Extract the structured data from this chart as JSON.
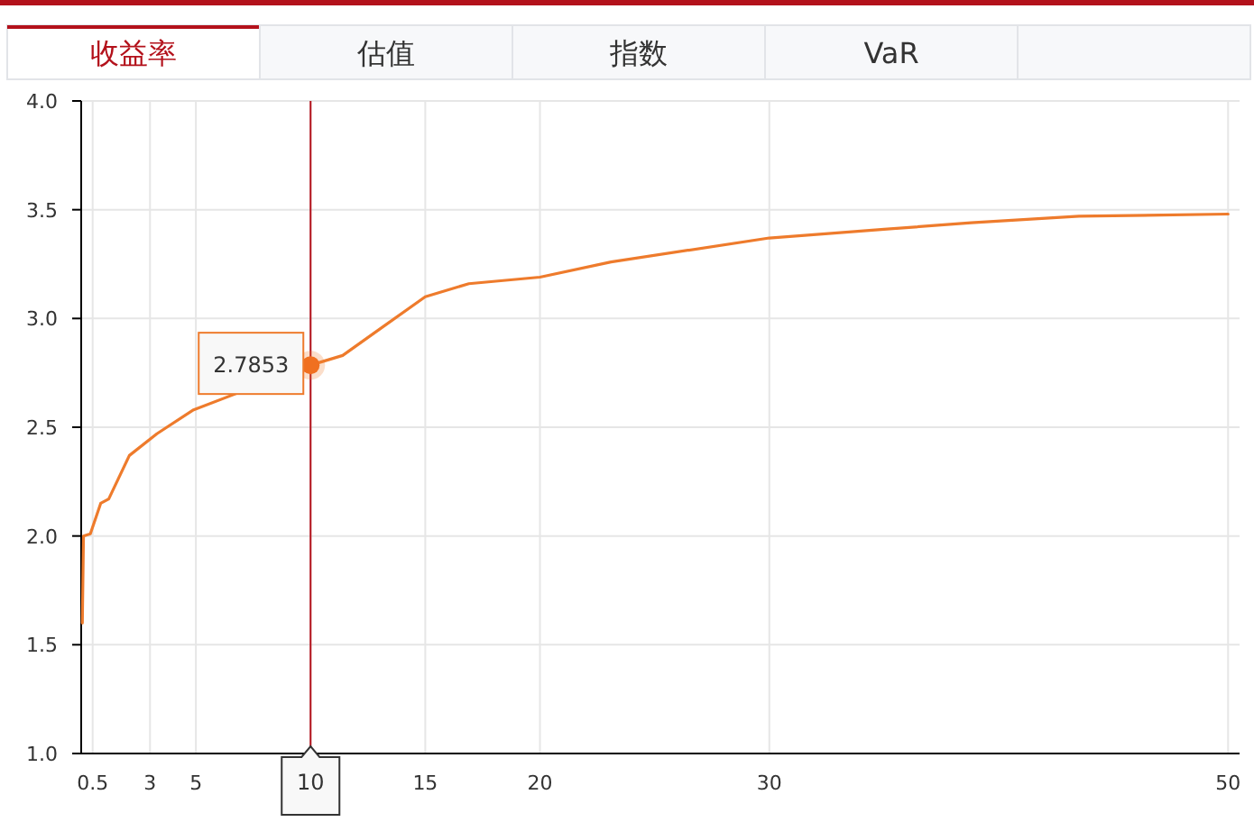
{
  "chart_data": {
    "type": "line",
    "x": [
      0.05,
      0.1,
      0.4,
      0.85,
      1.2,
      2.1,
      3.3,
      4.9,
      10,
      11.4,
      13,
      15,
      16.9,
      20,
      23.1,
      30,
      35,
      38.8,
      43.5,
      50
    ],
    "series": [
      {
        "color": "#ee7b2c",
        "values": [
          1.6,
          2.0,
          2.01,
          2.15,
          2.17,
          2.37,
          2.47,
          2.58,
          2.7853,
          2.83,
          2.95,
          3.1,
          3.16,
          3.19,
          3.26,
          3.37,
          3.41,
          3.44,
          3.47,
          3.48
        ]
      }
    ],
    "xlim": [
      0,
      50.5
    ],
    "xticks": [
      0.5,
      3,
      5,
      10,
      15,
      20,
      30,
      50
    ],
    "ylim": [
      1,
      4
    ],
    "yticks": [
      {
        "value": 1,
        "label": "1.0"
      },
      {
        "value": 1.5,
        "label": "1.5"
      },
      {
        "value": 2,
        "label": "2.0"
      },
      {
        "value": 2.5,
        "label": "2.5"
      },
      {
        "value": 3,
        "label": "3.0"
      },
      {
        "value": 3.5,
        "label": "3.5"
      },
      {
        "value": 4,
        "label": "4.0"
      }
    ],
    "grid": true,
    "ref_lines": [
      {
        "axis": "x",
        "value": 10,
        "label": "10",
        "color": "#b3111b"
      }
    ],
    "annotations": [
      "收益率",
      "估值",
      "指数",
      "VaR",
      {
        "text": "2.7853",
        "x": 10,
        "y": 2.7853
      }
    ]
  }
}
